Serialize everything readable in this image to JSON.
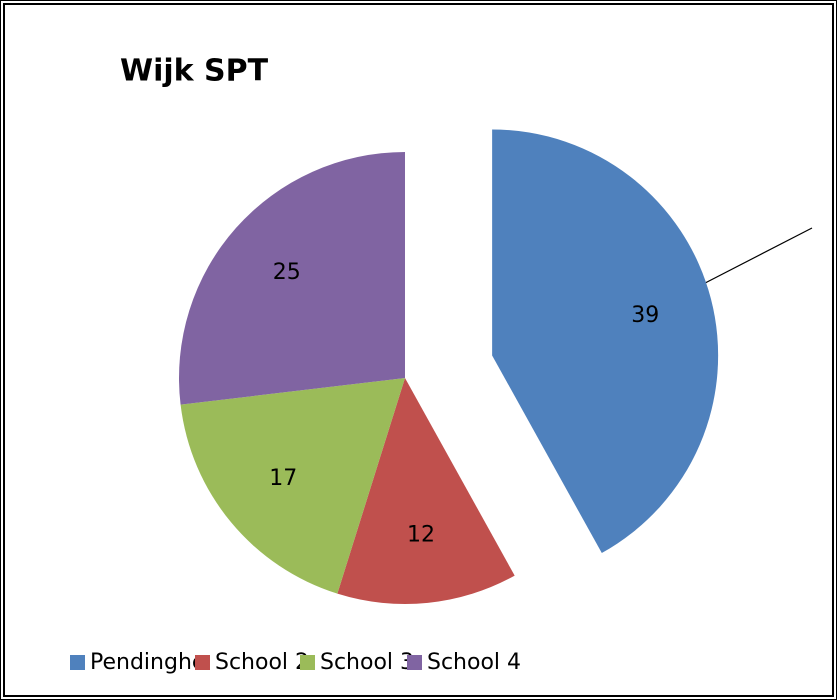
{
  "chart_data": {
    "type": "pie",
    "title": "Wijk SPT",
    "categories": [
      "Pendinghe",
      "School 2",
      "School 3",
      "School 4"
    ],
    "values": [
      39,
      12,
      17,
      25
    ],
    "colors": [
      "#4f81bd",
      "#c0504d",
      "#9bbb59",
      "#8064a2"
    ],
    "explode": [
      true,
      false,
      false,
      false
    ],
    "legend": "bottom"
  }
}
